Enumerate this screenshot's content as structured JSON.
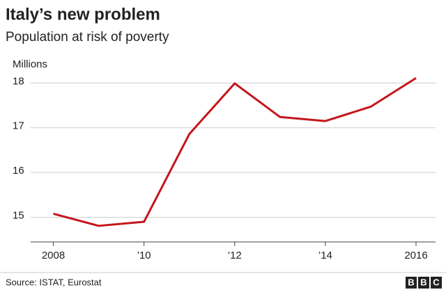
{
  "chart_data": {
    "type": "line",
    "title": "Italy’s new problem",
    "subtitle": "Population at risk of poverty",
    "y_label": "Millions",
    "x": [
      2008,
      2009,
      2010,
      2011,
      2012,
      2013,
      2014,
      2015,
      2016
    ],
    "series": [
      {
        "name": "Population at risk of poverty",
        "color": "#c4161c",
        "values": [
          15.08,
          14.81,
          14.9,
          16.86,
          17.99,
          17.24,
          17.15,
          17.47,
          18.11
        ]
      }
    ],
    "xlim": [
      2007.5,
      2016.43
    ],
    "xticks": [
      2008,
      {
        "value": 2010,
        "label": "’10"
      },
      {
        "value": 2012,
        "label": "’12"
      },
      {
        "value": 2014,
        "label": "’14"
      },
      2016
    ],
    "ylim": [
      14.45,
      18.3
    ],
    "yticks": [
      15,
      16,
      17,
      18
    ],
    "grid": true,
    "source": "Source: ISTAT, Eurostat",
    "logo": [
      "B",
      "B",
      "C"
    ]
  }
}
